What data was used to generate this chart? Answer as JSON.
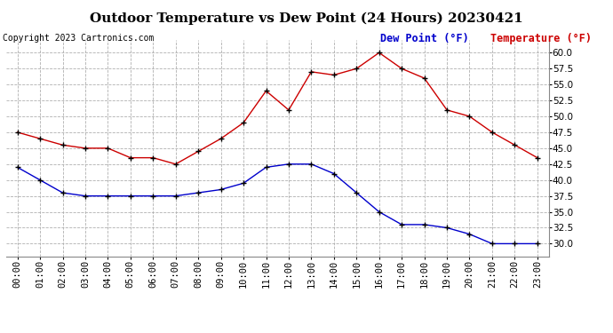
{
  "title": "Outdoor Temperature vs Dew Point (24 Hours) 20230421",
  "copyright": "Copyright 2023 Cartronics.com",
  "legend_dew": "Dew Point (°F)",
  "legend_temp": "Temperature (°F)",
  "hours": [
    "00:00",
    "01:00",
    "02:00",
    "03:00",
    "04:00",
    "05:00",
    "06:00",
    "07:00",
    "08:00",
    "09:00",
    "10:00",
    "11:00",
    "12:00",
    "13:00",
    "14:00",
    "15:00",
    "16:00",
    "17:00",
    "18:00",
    "19:00",
    "20:00",
    "21:00",
    "22:00",
    "23:00"
  ],
  "temperature": [
    47.5,
    46.5,
    45.5,
    45.0,
    45.0,
    43.5,
    43.5,
    42.5,
    44.5,
    46.5,
    49.0,
    54.0,
    51.0,
    57.0,
    56.5,
    57.5,
    60.0,
    57.5,
    56.0,
    51.0,
    50.0,
    47.5,
    45.5,
    43.5
  ],
  "dew_point": [
    42.0,
    40.0,
    38.0,
    37.5,
    37.5,
    37.5,
    37.5,
    37.5,
    38.0,
    38.5,
    39.5,
    42.0,
    42.5,
    42.5,
    41.0,
    38.0,
    35.0,
    33.0,
    33.0,
    32.5,
    31.5,
    30.0,
    30.0,
    30.0
  ],
  "ylim": [
    28.0,
    62.0
  ],
  "yticks": [
    30.0,
    32.5,
    35.0,
    37.5,
    40.0,
    42.5,
    45.0,
    47.5,
    50.0,
    52.5,
    55.0,
    57.5,
    60.0
  ],
  "temp_color": "#cc0000",
  "dew_color": "#0000cc",
  "marker_color": "black",
  "bg_color": "#ffffff",
  "grid_color": "#b0b0b0",
  "title_fontsize": 11,
  "copyright_fontsize": 7,
  "legend_fontsize": 8.5,
  "axis_fontsize": 7.5
}
